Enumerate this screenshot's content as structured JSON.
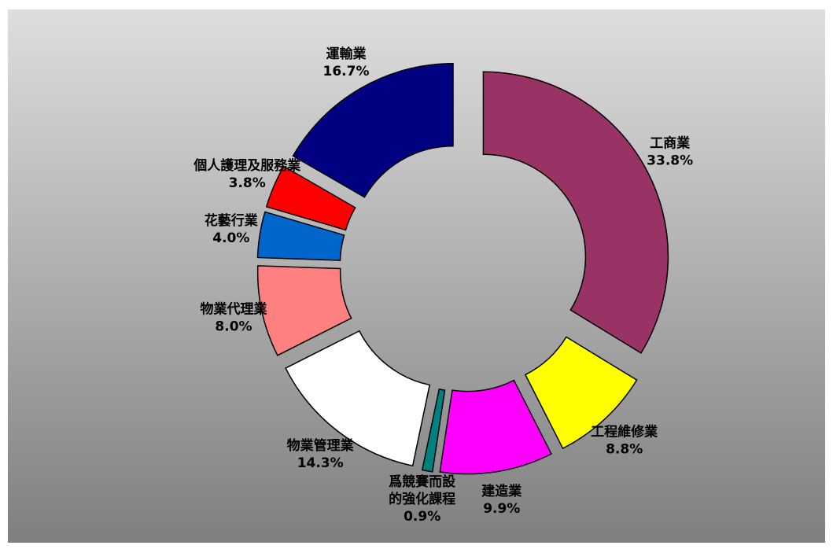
{
  "chart_data": {
    "type": "donut",
    "categories": [
      "工商業",
      "工程維修業",
      "建造業",
      "爲競賽而設\n的強化課程",
      "物業管理業",
      "物業代理業",
      "花藝行業",
      "個人護理及服務業",
      "運輸業"
    ],
    "values": [
      33.8,
      8.8,
      9.9,
      0.9,
      14.3,
      8.0,
      4.0,
      3.8,
      16.7
    ],
    "value_labels": [
      "33.8%",
      "8.8%",
      "9.9%",
      "0.9%",
      "14.3%",
      "8.0%",
      "4.0%",
      "3.8%",
      "16.7%"
    ],
    "colors": [
      "#993366",
      "#ffff00",
      "#ff00ff",
      "#008080",
      "#ffffff",
      "#ff8080",
      "#0066cc",
      "#ff0000",
      "#000080"
    ]
  }
}
